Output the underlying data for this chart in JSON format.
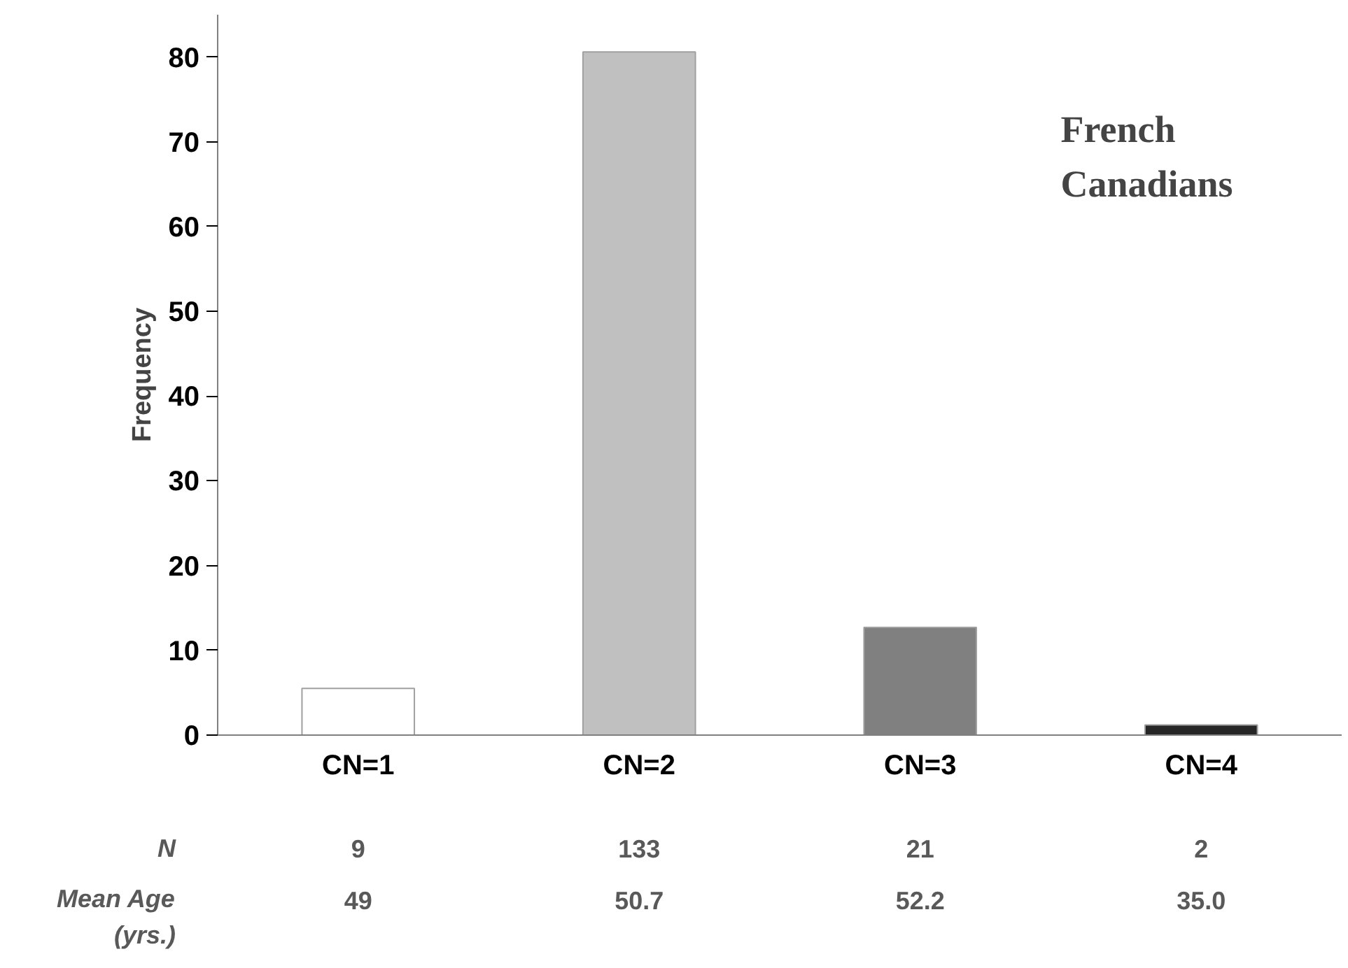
{
  "chart_data": {
    "type": "bar",
    "title": "French\nCanadians",
    "ylabel": "Frequency",
    "categories": [
      "CN=1",
      "CN=2",
      "CN=3",
      "CN=4"
    ],
    "values": [
      5.5,
      80.6,
      12.7,
      1.2
    ],
    "colors": [
      "#ffffff",
      "#c0c0c0",
      "#808080",
      "#262626"
    ],
    "ylim": [
      0,
      85
    ],
    "yticks": [
      0,
      10,
      20,
      30,
      40,
      50,
      60,
      70,
      80
    ],
    "grid": false,
    "annotations": [
      "N",
      "9",
      "133",
      "21",
      "2",
      "Mean Age\n(yrs.)",
      "49",
      "50.7",
      "52.2",
      "35.0"
    ]
  }
}
